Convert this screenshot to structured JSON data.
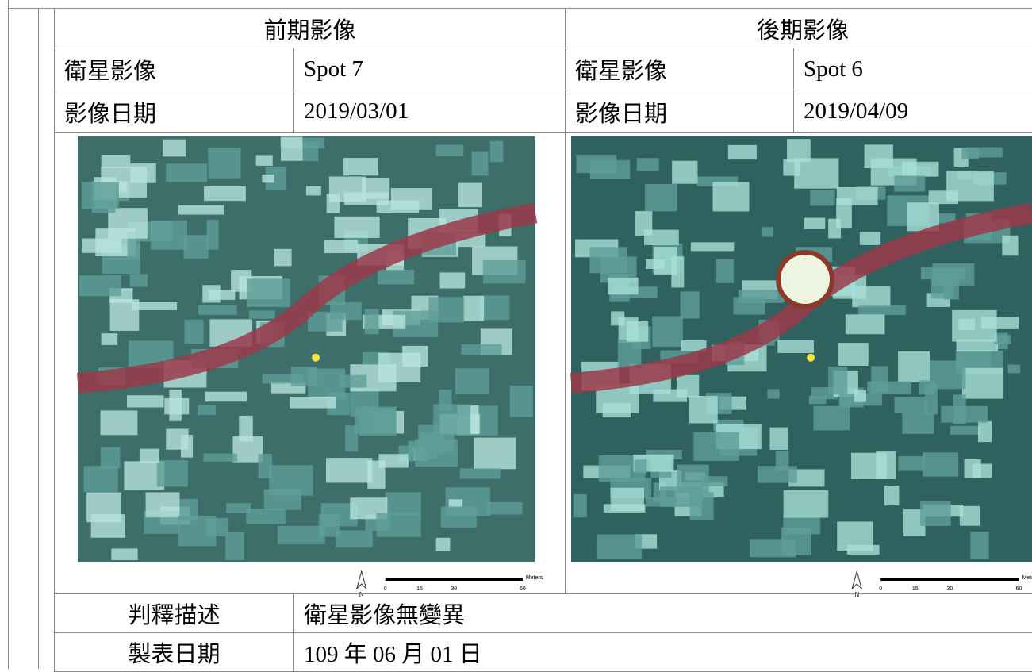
{
  "header": {
    "before": "前期影像",
    "after": "後期影像"
  },
  "rows": [
    [
      "衛星影像",
      "Spot 7",
      "衛星影像",
      "Spot 6"
    ],
    [
      "影像日期",
      "2019/03/01",
      "影像日期",
      "2019/04/09"
    ]
  ],
  "map": {
    "north": "N",
    "scale_labels": [
      "0",
      "15",
      "30",
      "60"
    ],
    "unit": "Meters"
  },
  "footer": [
    [
      "判釋描述",
      "衛星影像無變異"
    ],
    [
      "製表日期",
      "109 年 06 月 01 日"
    ]
  ]
}
